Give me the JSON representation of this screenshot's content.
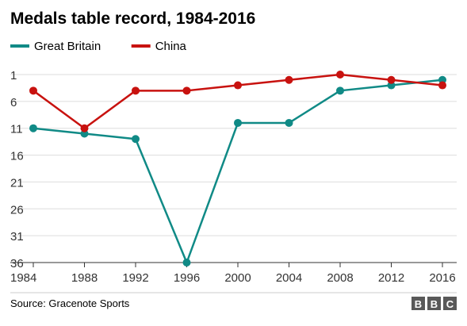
{
  "chart_data": {
    "type": "line",
    "title": "Medals table record, 1984-2016",
    "x": [
      1984,
      1988,
      1992,
      1996,
      2000,
      2004,
      2008,
      2012,
      2016
    ],
    "series": [
      {
        "name": "Great Britain",
        "color": "#108a86",
        "values": [
          11,
          12,
          13,
          36,
          10,
          10,
          4,
          3,
          2
        ]
      },
      {
        "name": "China",
        "color": "#c8120f",
        "values": [
          4,
          11,
          4,
          4,
          3,
          2,
          1,
          2,
          3
        ]
      }
    ],
    "y_reversed": true,
    "ylim": [
      1,
      36
    ],
    "yticks": [
      1,
      6,
      11,
      16,
      21,
      26,
      31,
      36
    ],
    "xticks": [
      1984,
      1988,
      1992,
      1996,
      2000,
      2004,
      2008,
      2012,
      2016
    ],
    "grid": "horizontal",
    "legend": "top-left",
    "source": "Source: Gracenote Sports",
    "logo": "BBC"
  }
}
